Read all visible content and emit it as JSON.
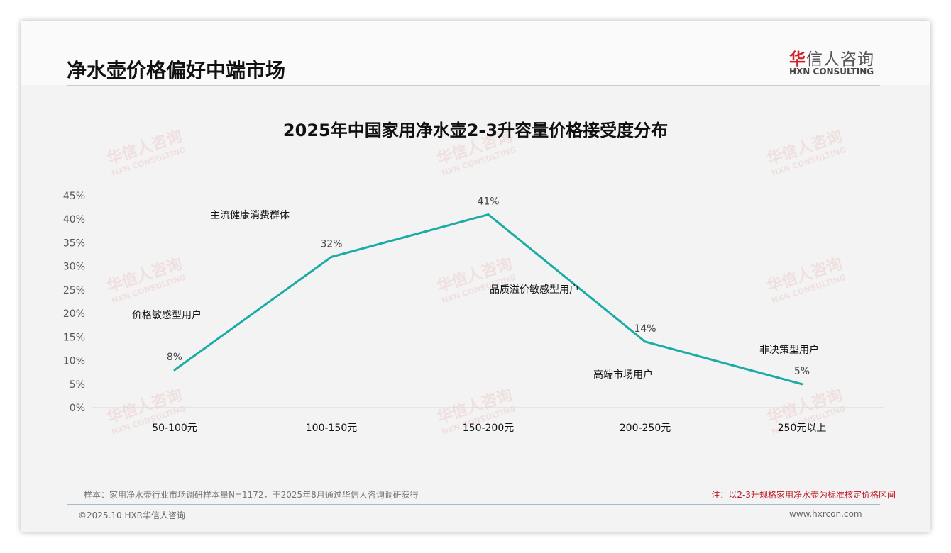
{
  "header": {
    "title": "净水壶价格偏好中端市场",
    "logo_cn_mark": "华",
    "logo_cn_rest": "信人咨询",
    "logo_en": "HXN CONSULTING"
  },
  "watermark": {
    "cn": "华信人咨询",
    "en": "HXN CONSULTING"
  },
  "chart_data": {
    "type": "line",
    "title": "2025年中国家用净水壶2-3升容量价格接受度分布",
    "categories": [
      "50-100元",
      "100-150元",
      "150-200元",
      "200-250元",
      "250元以上"
    ],
    "series": [
      {
        "name": "价格接受度",
        "values": [
          8,
          32,
          41,
          14,
          5
        ],
        "color": "#1aaba5"
      }
    ],
    "data_labels": [
      "8%",
      "32%",
      "41%",
      "14%",
      "5%"
    ],
    "ylim": [
      0,
      45
    ],
    "yticks": [
      "0%",
      "5%",
      "10%",
      "15%",
      "20%",
      "25%",
      "30%",
      "35%",
      "40%",
      "45%"
    ],
    "annotations": [
      "价格敏感型用户",
      "主流健康消费群体",
      "品质溢价敏感型用户",
      "高端市场用户",
      "非决策型用户"
    ],
    "grid": false
  },
  "notes": {
    "sample": "样本：家用净水壶行业市场调研样本量N=1172，于2025年8月通过华信人咨询调研获得",
    "remark": "注：以2-3升规格家用净水壶为标准核定价格区间"
  },
  "footer": {
    "copyright": "©2025.10 HXR华信人咨询",
    "url": "www.hxrcon.com"
  }
}
